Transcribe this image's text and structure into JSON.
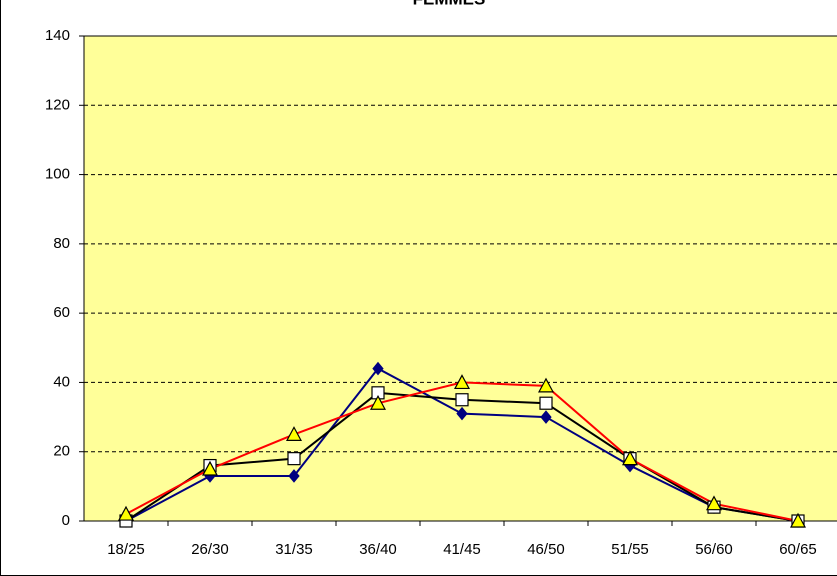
{
  "chart_data": {
    "type": "line",
    "title": "FEMMES",
    "categories": [
      "18/25",
      "26/30",
      "31/35",
      "36/40",
      "41/45",
      "46/50",
      "51/55",
      "56/60",
      "60/65"
    ],
    "series": [
      {
        "color": "#000080",
        "marker": "diamond",
        "marker_fill": "#000080",
        "values": [
          0,
          13,
          13,
          44,
          31,
          30,
          16,
          4,
          0
        ]
      },
      {
        "color": "#000000",
        "marker": "square",
        "marker_fill": "#ffffff",
        "values": [
          0,
          16,
          18,
          37,
          35,
          34,
          18,
          4,
          0
        ]
      },
      {
        "color": "#ff0000",
        "marker": "triangle",
        "marker_fill": "#ffff00",
        "values": [
          2,
          15,
          25,
          34,
          40,
          39,
          18,
          5,
          0
        ]
      }
    ],
    "ylim": [
      0,
      140
    ],
    "yticks": [
      0,
      20,
      40,
      60,
      80,
      100,
      120,
      140
    ],
    "grid": true,
    "background": "#ffff99"
  }
}
